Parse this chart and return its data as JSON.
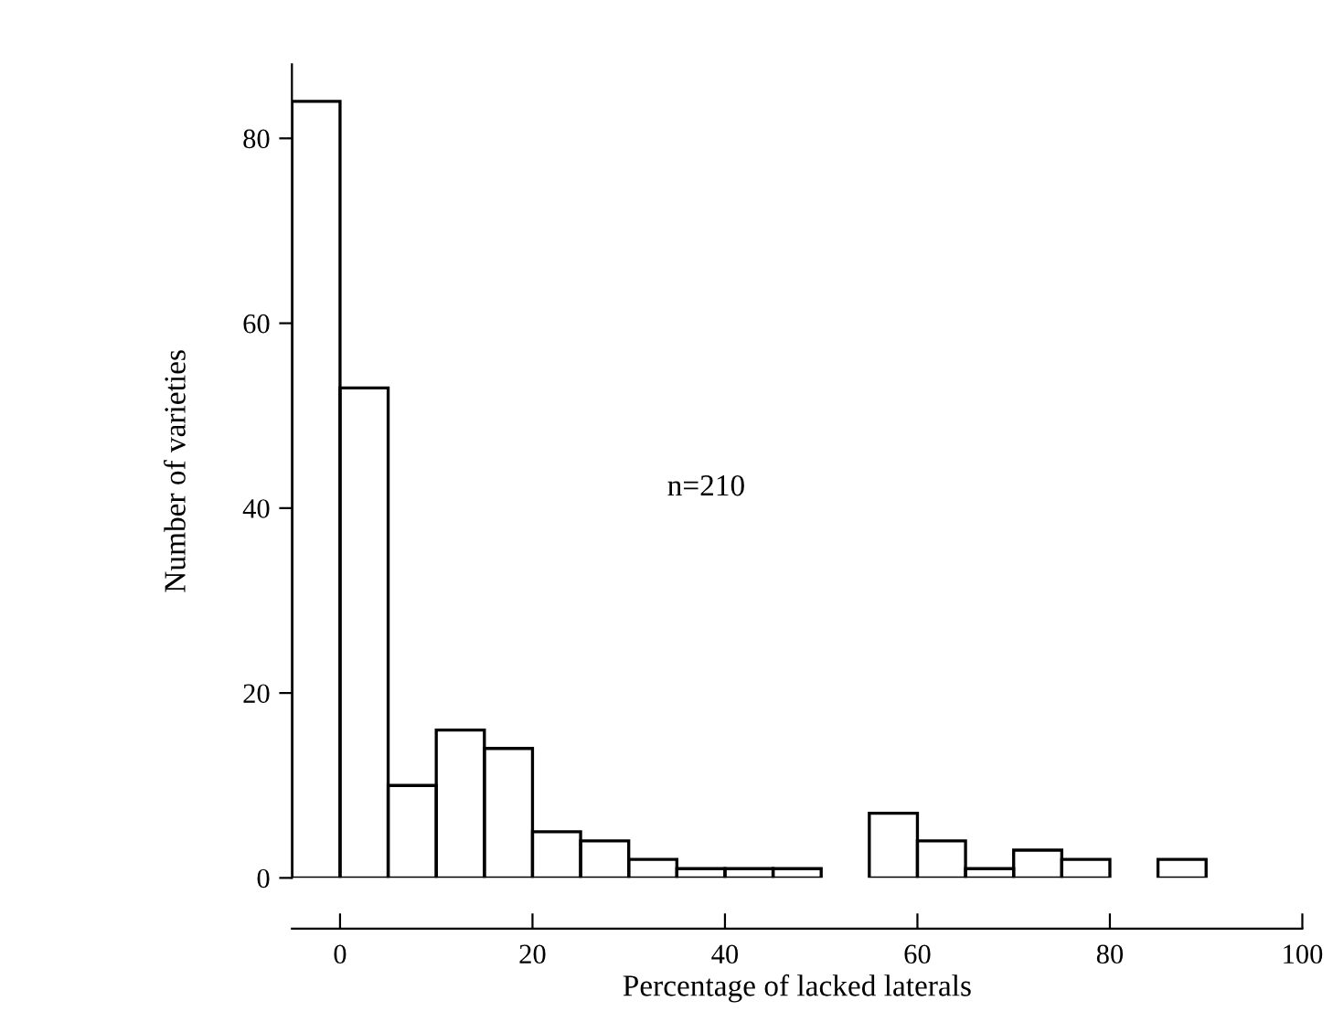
{
  "chart_data": {
    "type": "histogram",
    "xlabel": "Percentage of lacked laterals",
    "ylabel": "Number of varieties",
    "bins": [
      -5,
      0,
      5,
      10,
      15,
      20,
      25,
      30,
      35,
      40,
      45,
      50,
      55,
      60,
      65,
      70,
      75,
      80,
      85,
      90
    ],
    "values": [
      84,
      53,
      10,
      16,
      14,
      5,
      4,
      2,
      1,
      1,
      1,
      0,
      7,
      4,
      1,
      3,
      2,
      0,
      2
    ],
    "color": "#000000",
    "xlim": [
      -5,
      100
    ],
    "xticks": [
      0,
      20,
      40,
      60,
      80,
      100
    ],
    "ylim": [
      0,
      88
    ],
    "yticks": [
      0,
      20,
      40,
      60,
      80
    ],
    "annotations": [
      "n=210"
    ],
    "grid": false,
    "legend": false
  }
}
